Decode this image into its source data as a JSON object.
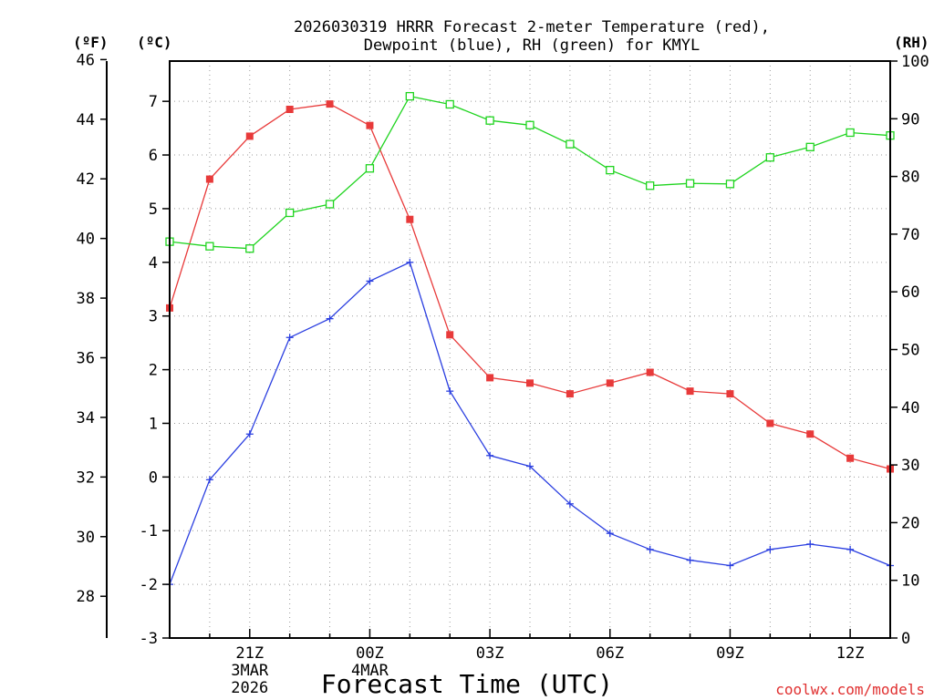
{
  "chart_data": {
    "type": "line",
    "title_line1": "2026030319 HRRR Forecast 2-meter Temperature (red),",
    "title_line2": "Dewpoint (blue), RH (green) for KMYL",
    "unit_f": "(ºF)",
    "unit_c": "(ºC)",
    "unit_rh": "(RH)",
    "xlabel": "Forecast Time (UTC)",
    "credit": "coolwx.com/models",
    "x_range": [
      19,
      37
    ],
    "c_range": [
      -3,
      7.75
    ],
    "rh_range": [
      0,
      100
    ],
    "f_ticks": [
      "28",
      "30",
      "32",
      "34",
      "36",
      "38",
      "40",
      "42",
      "44",
      "46"
    ],
    "c_ticks": [
      "-3",
      "-2",
      "-1",
      "0",
      "1",
      "2",
      "3",
      "4",
      "5",
      "6",
      "7"
    ],
    "rh_ticks": [
      "0",
      "10",
      "20",
      "30",
      "40",
      "50",
      "60",
      "70",
      "80",
      "90",
      "100"
    ],
    "x_ticks": [
      {
        "hour": 21,
        "label": "21Z",
        "sub1": "3MAR",
        "sub2": "2026"
      },
      {
        "hour": 24,
        "label": "00Z",
        "sub1": "4MAR",
        "sub2": ""
      },
      {
        "hour": 27,
        "label": "03Z",
        "sub1": "",
        "sub2": ""
      },
      {
        "hour": 30,
        "label": "06Z",
        "sub1": "",
        "sub2": ""
      },
      {
        "hour": 33,
        "label": "09Z",
        "sub1": "",
        "sub2": ""
      },
      {
        "hour": 36,
        "label": "12Z",
        "sub1": "",
        "sub2": ""
      }
    ],
    "x": [
      19,
      20,
      21,
      22,
      23,
      24,
      25,
      26,
      27,
      28,
      29,
      30,
      31,
      32,
      33,
      34,
      35,
      36,
      37
    ],
    "series": [
      {
        "name": "Temperature",
        "unit": "C",
        "color": "#e83a3a",
        "marker": "filled-square",
        "values": [
          3.15,
          5.55,
          6.35,
          6.85,
          6.95,
          6.55,
          4.8,
          2.65,
          1.85,
          1.75,
          1.55,
          1.75,
          1.95,
          1.6,
          1.55,
          1.0,
          0.8,
          0.35,
          0.15
        ]
      },
      {
        "name": "Dewpoint",
        "unit": "C",
        "color": "#2a3ee0",
        "marker": "plus",
        "values": [
          -2.0,
          -0.05,
          0.8,
          2.6,
          2.95,
          3.65,
          4.0,
          1.6,
          0.4,
          0.2,
          -0.5,
          -1.05,
          -1.35,
          -1.55,
          -1.65,
          -1.35,
          -1.25,
          -1.35,
          -1.65
        ]
      },
      {
        "name": "RH",
        "unit": "%",
        "color": "#1fd41f",
        "marker": "open-square",
        "values": [
          68.7,
          67.9,
          67.5,
          73.7,
          75.2,
          81.4,
          93.9,
          92.5,
          89.7,
          88.9,
          85.6,
          81.1,
          78.4,
          78.8,
          78.7,
          83.3,
          85.1,
          87.6,
          87.1
        ]
      }
    ]
  }
}
